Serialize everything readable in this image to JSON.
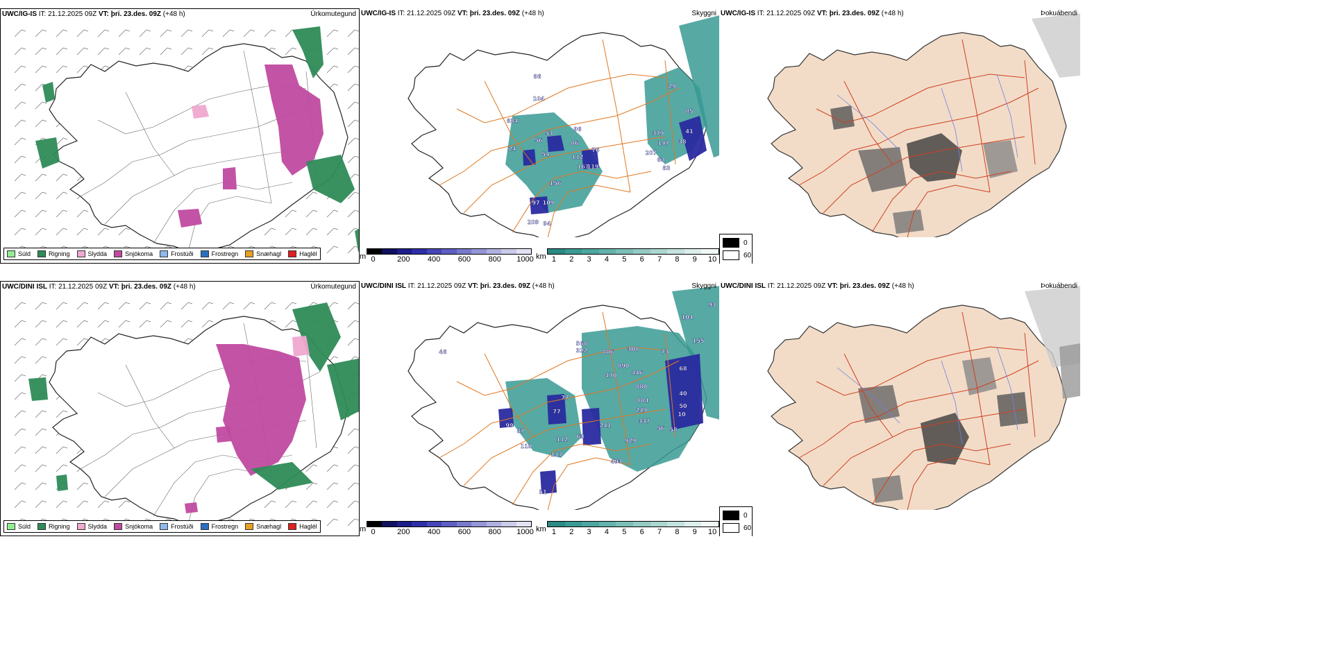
{
  "colors": {
    "rain": "#2e8b57",
    "drizzle": "#90ee90",
    "sleet": "#f0a8d0",
    "snow": "#c04aa0",
    "freezing_drizzle": "#8fb8ea",
    "freezing_rain": "#2a6fc0",
    "snow_pellets": "#e8a020",
    "hail": "#e02020",
    "cloud_teal": "#3a9a94",
    "ceiling_blue": "#2a2aa0",
    "roads": "#e07820",
    "land_tan": "#f2dcc8",
    "outline": "#222222"
  },
  "top_row": {
    "header": {
      "model": "UWC/IG-IS",
      "it_label": "IT:",
      "it_value": "21.12.2025 09Z",
      "vt_label": "VT:",
      "vt_value": "þri. 23.des. 09Z",
      "lead": "(+48 h)"
    },
    "titles": {
      "precip_type": "Úrkomutegund",
      "ceiling": "Skyggni",
      "fog": "Þokuábendi"
    },
    "ceiling_labels": [
      "86",
      "104",
      "53",
      "56",
      "24",
      "54",
      "112",
      "167",
      "119",
      "76",
      "96",
      "86",
      "156",
      "97",
      "109",
      "209",
      "94",
      "634",
      "379",
      "147",
      "207",
      "63",
      "83",
      "85",
      "41",
      "38",
      "29"
    ]
  },
  "bottom_row": {
    "header": {
      "model": "UWC/DINI ISL",
      "it_label": "IT:",
      "it_value": "21.12.2025 09Z",
      "vt_label": "VT:",
      "vt_value": "þri. 23.des. 09Z",
      "lead": "(+48 h)"
    },
    "titles": {
      "precip_type": "Úrkomutegund",
      "ceiling": "Skyggni",
      "fog": "Þokuábendi"
    },
    "ceiling_labels": [
      "93",
      "104",
      "155",
      "568",
      "322",
      "886",
      "308",
      "890",
      "470",
      "446",
      "880",
      "884",
      "249",
      "337",
      "241",
      "929",
      "493",
      "58",
      "77",
      "63",
      "112",
      "117",
      "87",
      "119",
      "99",
      "77",
      "51",
      "46",
      "73",
      "68",
      "40",
      "50",
      "10",
      "56"
    ]
  },
  "precip_legend": [
    {
      "label": "Súld",
      "color": "#90ee90"
    },
    {
      "label": "Rigning",
      "color": "#2e8b57"
    },
    {
      "label": "Slydda",
      "color": "#f0a8d0"
    },
    {
      "label": "Snjókoma",
      "color": "#c04aa0"
    },
    {
      "label": "Frostúði",
      "color": "#8fb8ea"
    },
    {
      "label": "Frostregn",
      "color": "#2a6fc0"
    },
    {
      "label": "Snæhagl",
      "color": "#e8a020"
    },
    {
      "label": "Haglél",
      "color": "#e02020"
    }
  ],
  "ceiling_colorbar": {
    "unit": "m",
    "ticks": [
      "0",
      "200",
      "400",
      "600",
      "800",
      "1000"
    ],
    "colors": [
      "#000000",
      "#101060",
      "#1e1e8a",
      "#2e2ea8",
      "#4646b8",
      "#5e5ec4",
      "#7878cc",
      "#9494d6",
      "#b0b0e0",
      "#cacaea",
      "#e2e2f4"
    ]
  },
  "visibility_colorbar": {
    "unit": "km",
    "ticks": [
      "1",
      "2",
      "3",
      "4",
      "5",
      "6",
      "7",
      "8",
      "9",
      "10"
    ],
    "colors": [
      "#2a8a84",
      "#3a9a94",
      "#4ea6a0",
      "#64b2ac",
      "#7cbeb8",
      "#94cac4",
      "#acd6d0",
      "#c4e2de",
      "#dceeeb",
      "#f2f8f7"
    ]
  },
  "fog_legend": {
    "items": [
      {
        "label": "0",
        "color": "#000000"
      },
      {
        "label": "60",
        "color": "#ffffff"
      }
    ]
  }
}
